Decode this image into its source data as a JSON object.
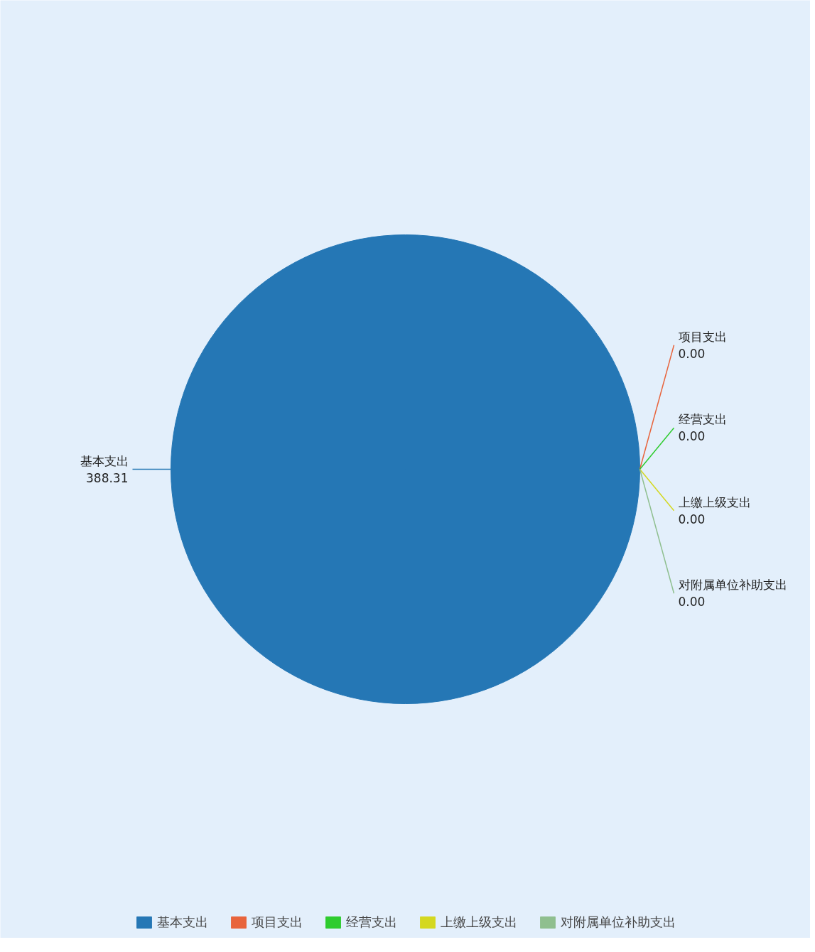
{
  "chart_data": {
    "type": "pie",
    "categories": [
      "基本支出",
      "项目支出",
      "经营支出",
      "上缴上级支出",
      "对附属单位补助支出"
    ],
    "values": [
      388.31,
      0,
      0,
      0,
      0
    ],
    "value_labels": [
      "388.31",
      "0.00",
      "0.00",
      "0.00",
      "0.00"
    ],
    "colors": [
      "#2577b5",
      "#e8643c",
      "#2ecc2e",
      "#d4d820",
      "#8fbf8f"
    ],
    "legend": "bottom"
  }
}
